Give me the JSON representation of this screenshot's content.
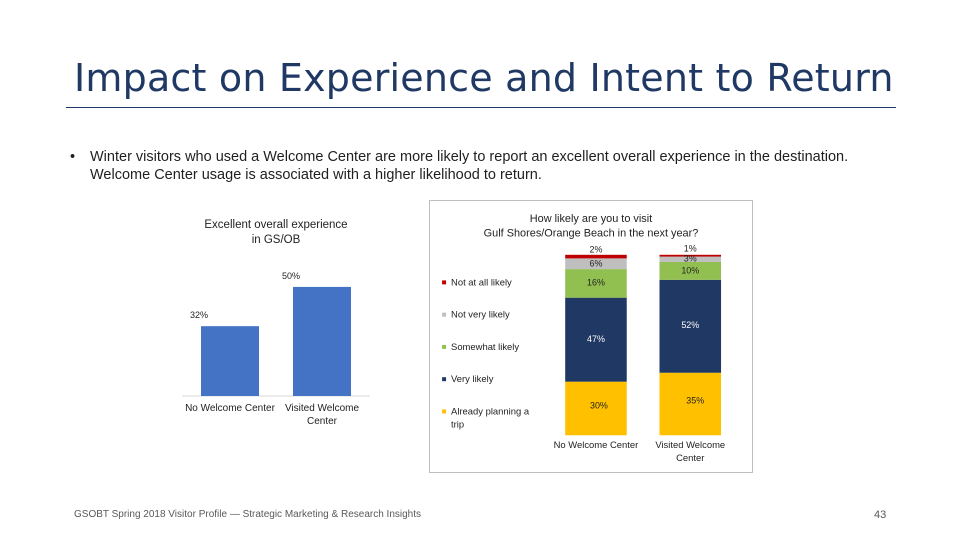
{
  "slide": {
    "title": "Impact on Experience and Intent to Return",
    "bullet_marker": "•",
    "bullet": "Winter visitors who used a Welcome Center are more likely to report an excellent overall experience in the destination. Welcome Center usage is associated with a higher likelihood to return.",
    "footer": "GSOBT Spring 2018 Visitor Profile — Strategic Marketing & Research Insights",
    "page_number": "43"
  },
  "colors": {
    "title": "#1f3864",
    "bar_blue": "#4472c4",
    "not_at_all": "#c00000",
    "not_very": "#bfbfbf",
    "somewhat": "#92c050",
    "very": "#1f3864",
    "already": "#ffc000"
  },
  "chart_data": [
    {
      "type": "bar",
      "title_lines": [
        "Excellent overall experience",
        "in GS/OB"
      ],
      "categories": [
        "No Welcome Center",
        "Visited Welcome Center"
      ],
      "category_lines": [
        [
          "No Welcome Center"
        ],
        [
          "Visited Welcome",
          "Center"
        ]
      ],
      "values": [
        32,
        50
      ],
      "value_labels": [
        "32%",
        "50%"
      ],
      "ylim": [
        0,
        55
      ]
    },
    {
      "type": "bar",
      "stacked": true,
      "title_lines": [
        "How likely are you to visit",
        "Gulf Shores/Orange Beach in the next year?"
      ],
      "categories": [
        "No Welcome Center",
        "Visited Welcome Center"
      ],
      "category_lines": [
        [
          "No Welcome Center"
        ],
        [
          "Visited Welcome",
          "Center"
        ]
      ],
      "series": [
        {
          "name": "Already planning a trip",
          "legend_lines": [
            "Already planning a",
            "trip"
          ],
          "color_key": "already",
          "values": [
            30,
            35
          ],
          "labels": [
            "30%",
            "35%"
          ]
        },
        {
          "name": "Very likely",
          "legend_lines": [
            "Very likely"
          ],
          "color_key": "very",
          "values": [
            47,
            52
          ],
          "labels": [
            "47%",
            "52%"
          ]
        },
        {
          "name": "Somewhat likely",
          "legend_lines": [
            "Somewhat likely"
          ],
          "color_key": "somewhat",
          "values": [
            16,
            10
          ],
          "labels": [
            "16%",
            "10%"
          ]
        },
        {
          "name": "Not very likely",
          "legend_lines": [
            "Not very likely"
          ],
          "color_key": "not_very",
          "values": [
            6,
            3
          ],
          "labels": [
            "6%",
            "3%"
          ]
        },
        {
          "name": "Not at all likely",
          "legend_lines": [
            "Not at all likely"
          ],
          "color_key": "not_at_all",
          "values": [
            2,
            1
          ],
          "labels": [
            "2%",
            "1%"
          ]
        }
      ],
      "ylim": [
        0,
        100
      ]
    }
  ]
}
